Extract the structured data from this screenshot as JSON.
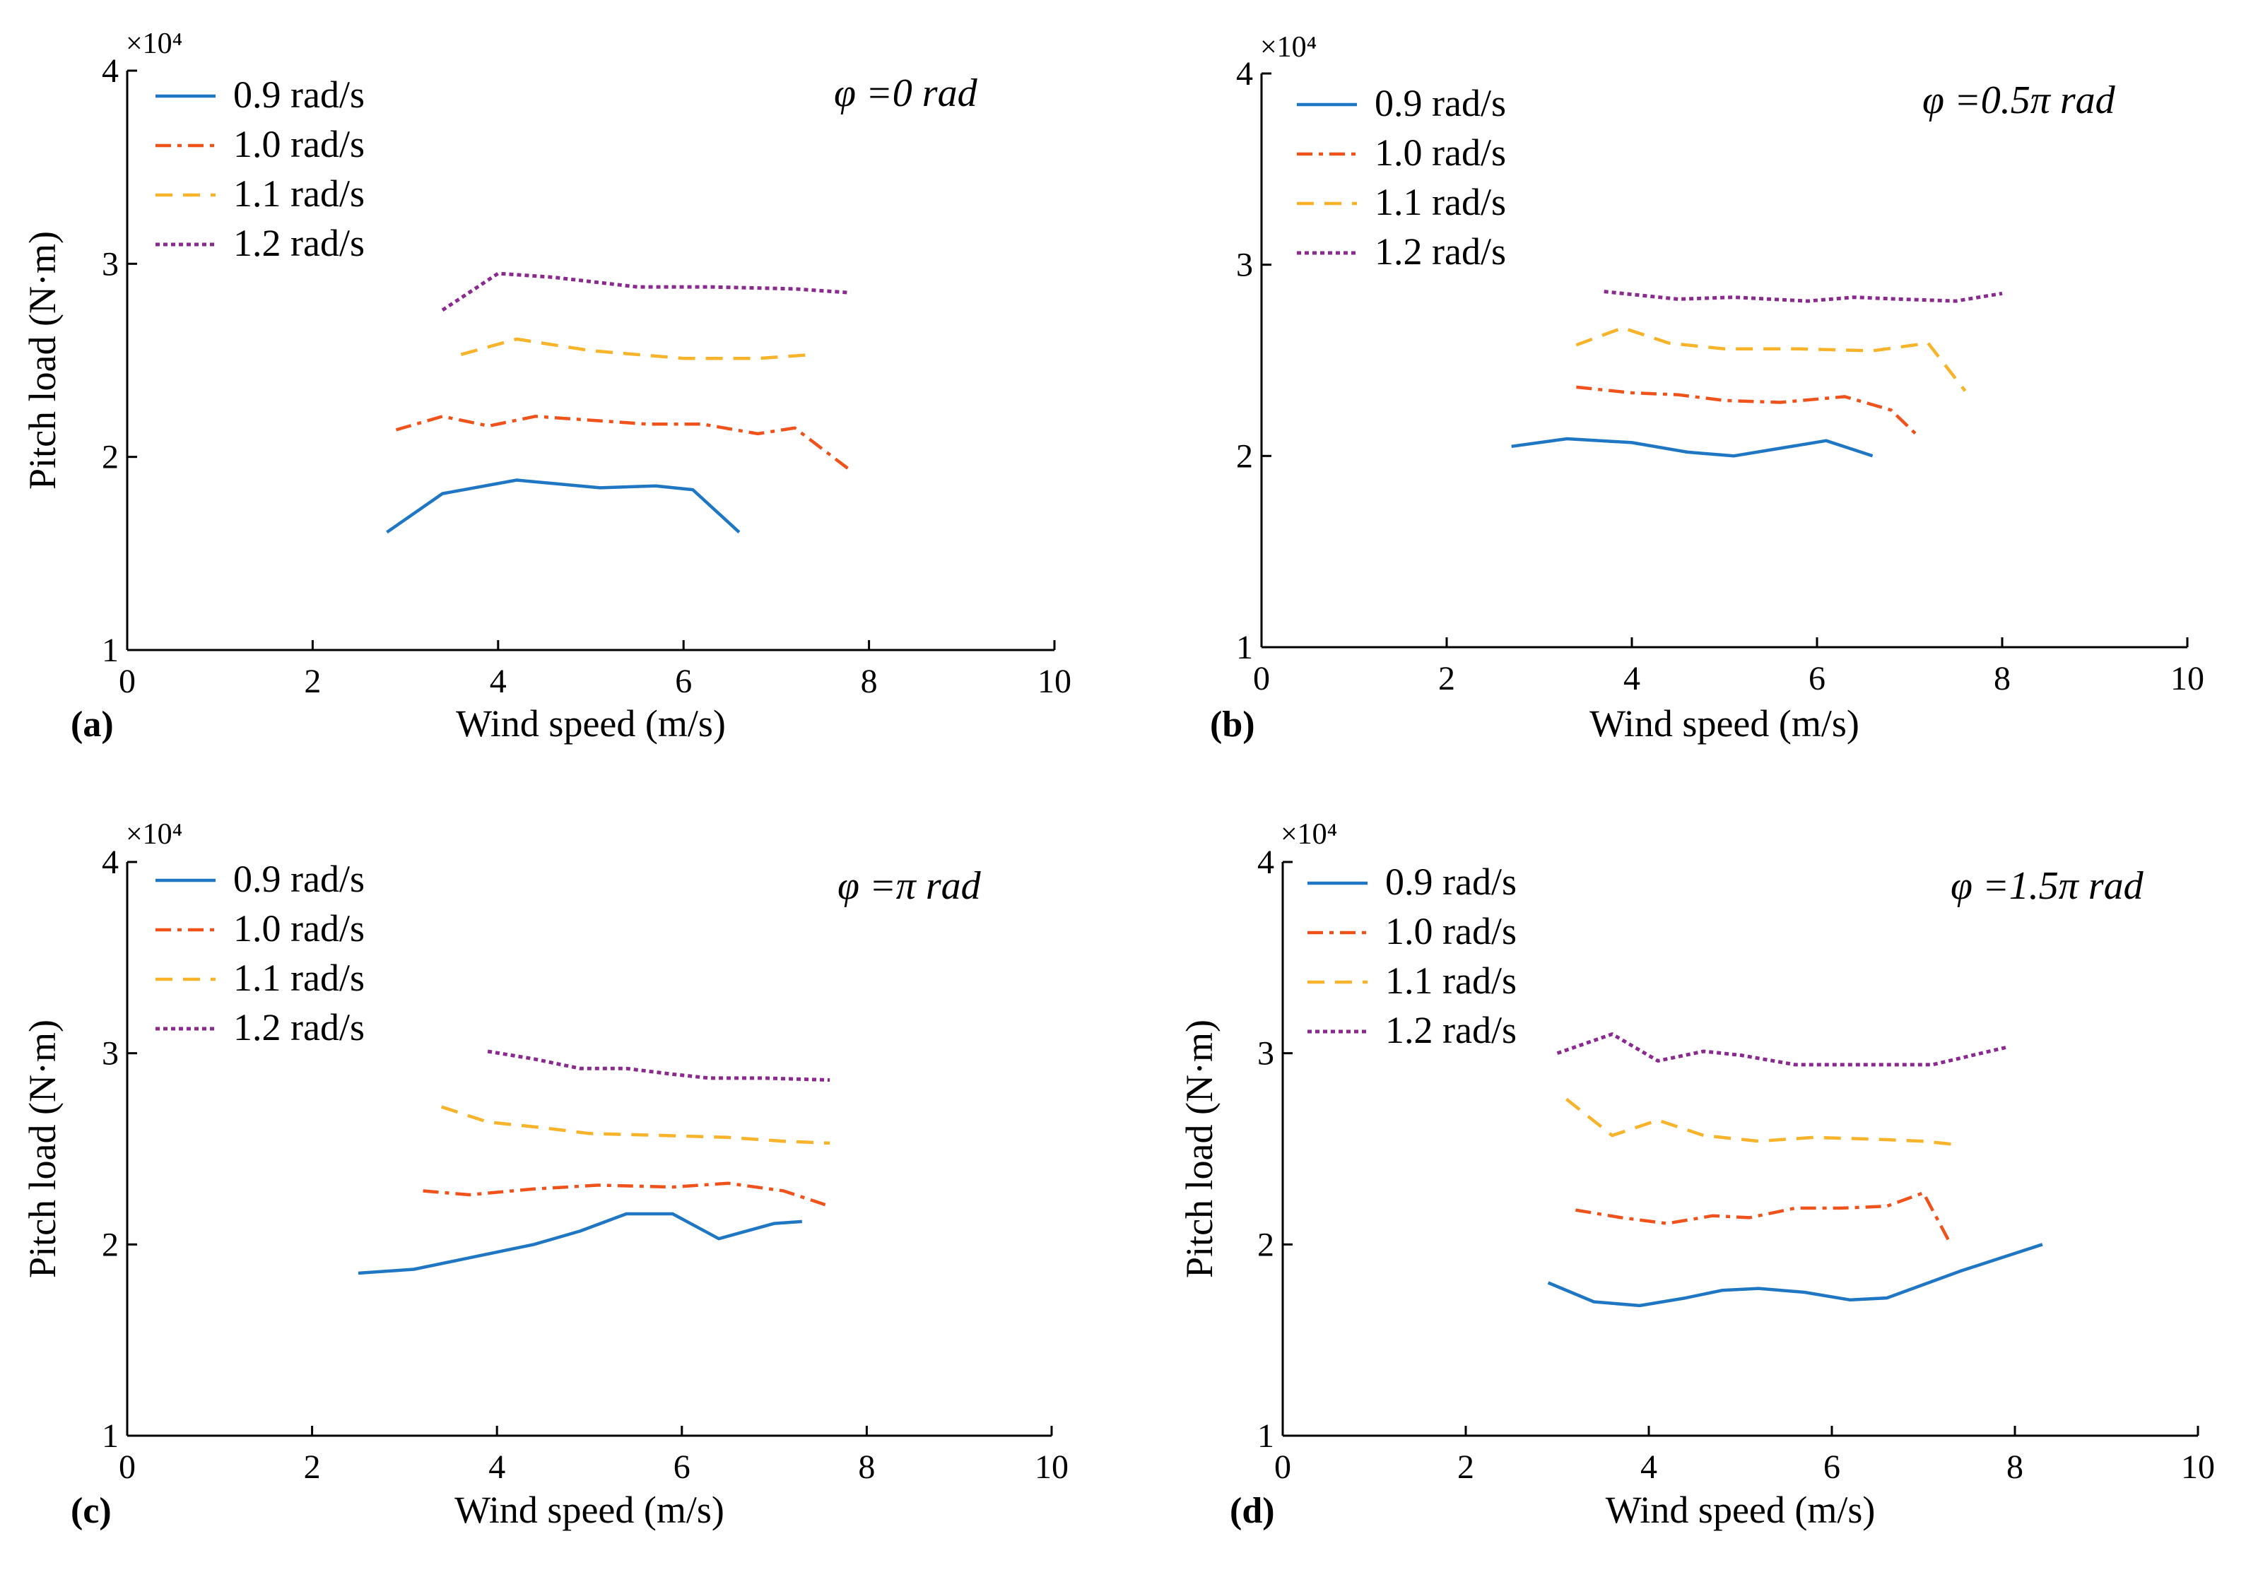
{
  "figure": {
    "legend_entries": [
      "0.9 rad/s",
      "1.0 rad/s",
      "1.1 rad/s",
      "1.2 rad/s"
    ],
    "series_colors": [
      "#1f77c4",
      "#f0521c",
      "#f7b329",
      "#8b2a8e"
    ],
    "series_dash": [
      "solid",
      "dashdot",
      "dashed",
      "dotted"
    ]
  },
  "chart_data": [
    {
      "type": "line",
      "panel_label": "(a)",
      "annotation": "φ =0 rad",
      "exponent_label": "×10⁴",
      "xlabel": "Wind speed (m/s)",
      "ylabel": "Pitch load (N·m)",
      "xlim": [
        0,
        10
      ],
      "ylim": [
        1,
        4
      ],
      "xticks": [
        0,
        2,
        4,
        6,
        8,
        10
      ],
      "yticks": [
        1,
        2,
        3,
        4
      ],
      "legend_position": "top-left",
      "series": [
        {
          "name": "0.9 rad/s",
          "x": [
            2.8,
            3.4,
            4.2,
            5.1,
            5.7,
            6.1,
            6.6
          ],
          "y": [
            1.61,
            1.81,
            1.88,
            1.84,
            1.85,
            1.83,
            1.61
          ]
        },
        {
          "name": "1.0 rad/s",
          "x": [
            2.9,
            3.4,
            3.9,
            4.4,
            5.0,
            5.6,
            6.2,
            6.8,
            7.2,
            7.8
          ],
          "y": [
            2.14,
            2.21,
            2.16,
            2.21,
            2.19,
            2.17,
            2.17,
            2.12,
            2.15,
            1.93
          ]
        },
        {
          "name": "1.1 rad/s",
          "x": [
            3.6,
            4.2,
            5.0,
            6.0,
            6.8,
            7.4
          ],
          "y": [
            2.53,
            2.61,
            2.55,
            2.51,
            2.51,
            2.53
          ]
        },
        {
          "name": "1.2 rad/s",
          "x": [
            3.4,
            4.0,
            4.6,
            5.5,
            6.3,
            7.2,
            7.8
          ],
          "y": [
            2.76,
            2.95,
            2.93,
            2.88,
            2.88,
            2.87,
            2.85
          ]
        }
      ]
    },
    {
      "type": "line",
      "panel_label": "(b)",
      "annotation": "φ =0.5π rad",
      "exponent_label": "×10⁴",
      "xlabel": "Wind speed (m/s)",
      "ylabel": "",
      "xlim": [
        0,
        10
      ],
      "ylim": [
        1,
        4
      ],
      "xticks": [
        0,
        2,
        4,
        6,
        8,
        10
      ],
      "yticks": [
        1,
        2,
        3,
        4
      ],
      "legend_position": "top-left",
      "series": [
        {
          "name": "0.9 rad/s",
          "x": [
            2.7,
            3.3,
            4.0,
            4.6,
            5.1,
            5.6,
            6.1,
            6.6
          ],
          "y": [
            2.05,
            2.09,
            2.07,
            2.02,
            2.0,
            2.04,
            2.08,
            2.0
          ]
        },
        {
          "name": "1.0 rad/s",
          "x": [
            3.4,
            4.0,
            4.5,
            5.0,
            5.6,
            6.3,
            6.8,
            7.1
          ],
          "y": [
            2.36,
            2.33,
            2.32,
            2.29,
            2.28,
            2.31,
            2.24,
            2.1
          ]
        },
        {
          "name": "1.1 rad/s",
          "x": [
            3.4,
            3.9,
            4.4,
            5.0,
            5.8,
            6.6,
            7.2,
            7.6
          ],
          "y": [
            2.58,
            2.67,
            2.59,
            2.56,
            2.56,
            2.55,
            2.59,
            2.34
          ]
        },
        {
          "name": "1.2 rad/s",
          "x": [
            3.7,
            4.1,
            4.5,
            5.1,
            5.5,
            5.9,
            6.4,
            6.9,
            7.5,
            8.0
          ],
          "y": [
            2.86,
            2.84,
            2.82,
            2.83,
            2.82,
            2.81,
            2.83,
            2.82,
            2.81,
            2.85
          ]
        }
      ]
    },
    {
      "type": "line",
      "panel_label": "(c)",
      "annotation": "φ =π rad",
      "exponent_label": "×10⁴",
      "xlabel": "Wind speed (m/s)",
      "ylabel": "Pitch load (N·m)",
      "xlim": [
        0,
        10
      ],
      "ylim": [
        1,
        4
      ],
      "xticks": [
        0,
        2,
        4,
        6,
        8,
        10
      ],
      "yticks": [
        1,
        2,
        3,
        4
      ],
      "legend_position": "top-left",
      "series": [
        {
          "name": "0.9 rad/s",
          "x": [
            2.5,
            3.1,
            3.8,
            4.4,
            4.9,
            5.4,
            5.9,
            6.4,
            7.0,
            7.3
          ],
          "y": [
            1.85,
            1.87,
            1.94,
            2.0,
            2.07,
            2.16,
            2.16,
            2.03,
            2.11,
            2.12
          ]
        },
        {
          "name": "1.0 rad/s",
          "x": [
            3.2,
            3.7,
            4.4,
            5.1,
            5.9,
            6.5,
            7.1,
            7.6
          ],
          "y": [
            2.28,
            2.26,
            2.29,
            2.31,
            2.3,
            2.32,
            2.28,
            2.2
          ]
        },
        {
          "name": "1.1 rad/s",
          "x": [
            3.4,
            3.9,
            4.5,
            5.0,
            5.8,
            6.5,
            7.1,
            7.6
          ],
          "y": [
            2.72,
            2.64,
            2.61,
            2.58,
            2.57,
            2.56,
            2.54,
            2.53
          ]
        },
        {
          "name": "1.2 rad/s",
          "x": [
            3.9,
            4.4,
            4.9,
            5.4,
            5.9,
            6.3,
            6.9,
            7.6
          ],
          "y": [
            3.01,
            2.97,
            2.92,
            2.92,
            2.89,
            2.87,
            2.87,
            2.86
          ]
        }
      ]
    },
    {
      "type": "line",
      "panel_label": "(d)",
      "annotation": "φ =1.5π rad",
      "exponent_label": "×10⁴",
      "xlabel": "Wind speed (m/s)",
      "ylabel": "Pitch load (N·m)",
      "xlim": [
        0,
        10
      ],
      "ylim": [
        1,
        4
      ],
      "xticks": [
        0,
        2,
        4,
        6,
        8,
        10
      ],
      "yticks": [
        1,
        2,
        3,
        4
      ],
      "legend_position": "top-left",
      "series": [
        {
          "name": "0.9 rad/s",
          "x": [
            2.9,
            3.4,
            3.9,
            4.4,
            4.8,
            5.2,
            5.7,
            6.2,
            6.6,
            7.4,
            8.3
          ],
          "y": [
            1.8,
            1.7,
            1.68,
            1.72,
            1.76,
            1.77,
            1.75,
            1.71,
            1.72,
            1.86,
            2.0
          ]
        },
        {
          "name": "1.0 rad/s",
          "x": [
            3.2,
            3.7,
            4.2,
            4.7,
            5.1,
            5.6,
            6.1,
            6.6,
            7.0,
            7.3
          ],
          "y": [
            2.18,
            2.14,
            2.11,
            2.15,
            2.14,
            2.19,
            2.19,
            2.2,
            2.27,
            2.0
          ]
        },
        {
          "name": "1.1 rad/s",
          "x": [
            3.1,
            3.6,
            4.1,
            4.6,
            5.2,
            5.8,
            6.5,
            7.0,
            7.4
          ],
          "y": [
            2.76,
            2.57,
            2.65,
            2.57,
            2.54,
            2.56,
            2.55,
            2.54,
            2.52
          ]
        },
        {
          "name": "1.2 rad/s",
          "x": [
            3.0,
            3.6,
            4.1,
            4.6,
            5.0,
            5.6,
            6.3,
            7.1,
            7.9
          ],
          "y": [
            3.0,
            3.1,
            2.96,
            3.01,
            2.99,
            2.94,
            2.94,
            2.94,
            3.03
          ]
        }
      ]
    }
  ]
}
